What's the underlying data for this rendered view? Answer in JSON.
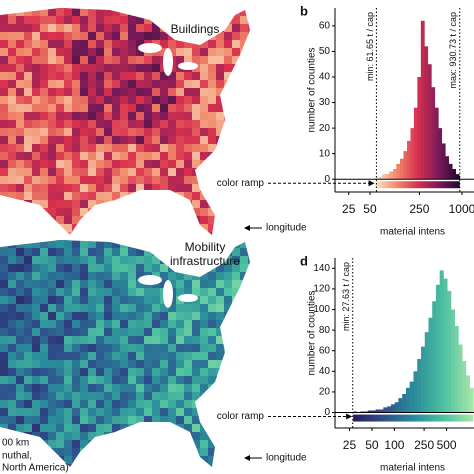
{
  "maps": [
    {
      "title": "Buildings",
      "longitude_label": "longitude"
    },
    {
      "title_lines": [
        "Mobility",
        "infrastructure"
      ],
      "longitude_label": "longitude",
      "scale_label": "00 km",
      "projection_lines": [
        "nuthal,",
        "North America)"
      ]
    }
  ],
  "chart_data": [
    {
      "type": "histogram",
      "panel_label": "b",
      "y_label": "number of counties",
      "x_label": "material intens",
      "ramp_label": "color ramp",
      "log_x": true,
      "bins": [
        60,
        67,
        75,
        84,
        94,
        106,
        118,
        133,
        149,
        167,
        187,
        209,
        234,
        262,
        294,
        329,
        369,
        413,
        463,
        518,
        581,
        650,
        728,
        816,
        914,
        930
      ],
      "counts": [
        1,
        1,
        2,
        2,
        3,
        4,
        6,
        8,
        11,
        15,
        20,
        28,
        40,
        62,
        52,
        45,
        36,
        28,
        20,
        14,
        9,
        6,
        4,
        2,
        1
      ],
      "color_ramp": [
        "#fde3c8",
        "#f08a6a",
        "#d8304e",
        "#7a1a5a",
        "#1e0a2a"
      ],
      "xlim": [
        16,
        1480
      ],
      "ylim": [
        -5,
        67
      ],
      "xticks": [
        25,
        50,
        250,
        1000
      ],
      "yticks": [
        0,
        10,
        20,
        30,
        40,
        50,
        60
      ],
      "annotations": [
        {
          "text": "min: 61.65 t / cap",
          "x": 61.65
        },
        {
          "text": "max: 930.73 t / cap",
          "x": 930.73
        }
      ]
    },
    {
      "type": "histogram",
      "panel_label": "d",
      "y_label": "number of counties",
      "x_label": "material intens",
      "ramp_label": "color ramp",
      "log_x": true,
      "bins": [
        28,
        31,
        35,
        39,
        44,
        50,
        56,
        63,
        71,
        80,
        90,
        101,
        113,
        127,
        143,
        160,
        180,
        202,
        227,
        255,
        286,
        321,
        360,
        404,
        454,
        510,
        572,
        642,
        720,
        808,
        907,
        1018,
        1143
      ],
      "counts": [
        1,
        0,
        1,
        1,
        2,
        2,
        3,
        3,
        5,
        6,
        8,
        10,
        14,
        18,
        24,
        30,
        40,
        52,
        64,
        78,
        92,
        108,
        124,
        138,
        130,
        118,
        100,
        84,
        66,
        50,
        36,
        24
      ],
      "color_ramp": [
        "#2a1a5e",
        "#2e4f8c",
        "#2a8a9a",
        "#4cc0a0",
        "#a8e8a8"
      ],
      "xlim": [
        16,
        1165
      ],
      "ylim": [
        -15,
        150
      ],
      "xticks": [
        25,
        50,
        100,
        250,
        500
      ],
      "yticks": [
        0,
        20,
        40,
        60,
        80,
        100,
        120,
        140
      ],
      "annotations": [
        {
          "text": "min: 27.63 t / cap",
          "x": 27.63
        }
      ]
    }
  ]
}
